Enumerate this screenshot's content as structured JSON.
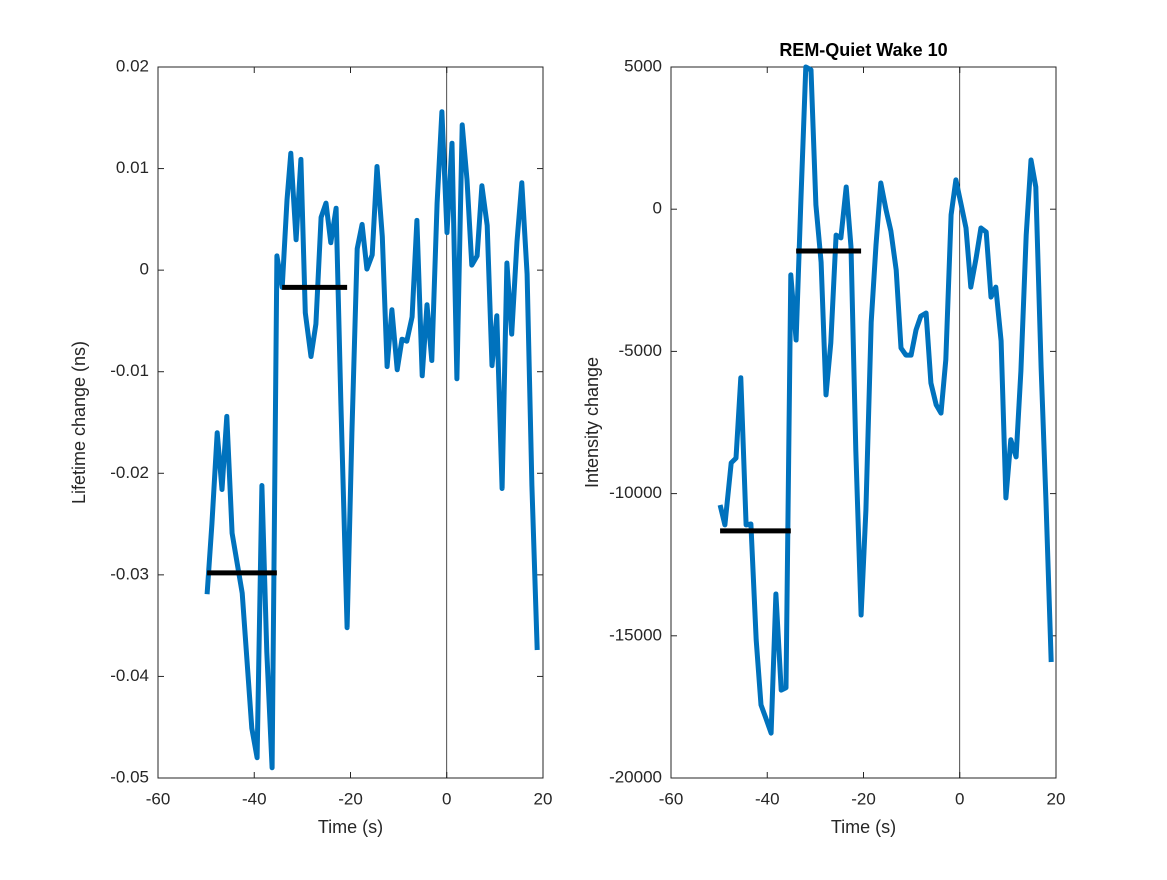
{
  "chart_data": [
    {
      "type": "line",
      "xlabel": "Time (s)",
      "ylabel": "Lifetime change (ns)",
      "color": "#0072bd",
      "xlim": [
        -60,
        20
      ],
      "xticks": [
        -60,
        -40,
        -20,
        0,
        20
      ],
      "ylim": [
        -0.05,
        0.02
      ],
      "yticks": [
        -0.05,
        -0.04,
        -0.03,
        -0.02,
        -0.01,
        0,
        0.01,
        0.02
      ],
      "vline": 0,
      "x": [
        -49.8,
        -48.8,
        -47.7,
        -46.7,
        -45.7,
        -44.6,
        -42.5,
        -40.5,
        -39.4,
        -38.4,
        -37.4,
        -36.3,
        -35.3,
        -34.2,
        -33.2,
        -32.4,
        -31.3,
        -30.3,
        -29.4,
        -28.2,
        -27.2,
        -26.1,
        -25.1,
        -24.1,
        -23.0,
        -22.0,
        -20.7,
        -19.7,
        -18.6,
        -17.6,
        -16.6,
        -15.5,
        -14.5,
        -13.4,
        -12.4,
        -11.4,
        -10.3,
        -9.3,
        -8.3,
        -7.2,
        -6.2,
        -5.1,
        -4.1,
        -3.1,
        -2.0,
        -1.0,
        0.05,
        1.1,
        2.1,
        3.2,
        4.2,
        5.2,
        6.3,
        7.3,
        8.4,
        9.4,
        10.4,
        11.5,
        12.5,
        13.5,
        14.6,
        15.6,
        16.7,
        17.7,
        18.8
      ],
      "values": [
        -0.0319,
        -0.025,
        -0.016,
        -0.0216,
        -0.0144,
        -0.0259,
        -0.0318,
        -0.0451,
        -0.048,
        -0.0212,
        -0.0376,
        -0.049,
        0.0014,
        -0.0017,
        0.0069,
        0.0115,
        0.003,
        0.0109,
        -0.0042,
        -0.0085,
        -0.0053,
        0.0052,
        0.0066,
        0.0027,
        0.0061,
        -0.0132,
        -0.0352,
        -0.016,
        0.0021,
        0.0045,
        0.0001,
        0.0015,
        0.0102,
        0.0033,
        -0.0095,
        -0.0039,
        -0.0098,
        -0.0068,
        -0.007,
        -0.0046,
        0.0049,
        -0.0104,
        -0.0034,
        -0.0089,
        0.0066,
        0.0156,
        0.0037,
        0.0125,
        -0.0107,
        0.0143,
        0.0089,
        0.0005,
        0.0014,
        0.0083,
        0.0044,
        -0.0094,
        -0.0045,
        -0.0215,
        0.0007,
        -0.0063,
        0.0028,
        0.0086,
        -0.0004,
        -0.0212,
        -0.0374
      ],
      "segments": [
        {
          "x": [
            -49.8,
            -35.3
          ],
          "y": -0.0298
        },
        {
          "x": [
            -34.2,
            -20.7
          ],
          "y": -0.0017
        }
      ]
    },
    {
      "type": "line",
      "title": "REM-Quiet Wake 10",
      "xlabel": "Time (s)",
      "ylabel": "Intensity change",
      "color": "#0072bd",
      "xlim": [
        -60,
        20
      ],
      "xticks": [
        -60,
        -40,
        -20,
        0,
        20
      ],
      "ylim": [
        -20000,
        5000
      ],
      "yticks": [
        -20000,
        -15000,
        -10000,
        -5000,
        0,
        5000
      ],
      "vline": 0,
      "x": [
        -49.8,
        -48.8,
        -47.5,
        -46.5,
        -45.5,
        -44.4,
        -43.4,
        -42.3,
        -41.3,
        -40.3,
        -39.2,
        -38.2,
        -37.1,
        -36.1,
        -35.1,
        -34.0,
        -33.0,
        -32.0,
        -30.9,
        -29.9,
        -28.8,
        -27.8,
        -26.8,
        -25.7,
        -24.7,
        -23.6,
        -22.6,
        -21.6,
        -20.5,
        -19.5,
        -18.4,
        -17.4,
        -16.4,
        -15.3,
        -14.3,
        -13.2,
        -12.2,
        -11.2,
        -10.1,
        -9.1,
        -8.1,
        -7.0,
        -6.0,
        -4.9,
        -3.9,
        -2.9,
        -1.8,
        -0.8,
        0.3,
        1.3,
        2.3,
        3.4,
        4.4,
        5.5,
        6.5,
        7.5,
        8.6,
        9.6,
        10.6,
        11.7,
        12.7,
        13.8,
        14.8,
        15.8,
        16.9,
        17.9,
        19.0
      ],
      "values": [
        -10400,
        -11100,
        -8920,
        -8750,
        -5930,
        -11100,
        -11070,
        -15150,
        -17430,
        -17890,
        -18420,
        -13530,
        -16910,
        -16830,
        -2310,
        -4600,
        320,
        5000,
        4900,
        150,
        -1860,
        -6530,
        -4700,
        -910,
        -1010,
        780,
        -1330,
        -8470,
        -14270,
        -10580,
        -3970,
        -1260,
        920,
        -30,
        -770,
        -2140,
        -4880,
        -5130,
        -5130,
        -4250,
        -3760,
        -3650,
        -6110,
        -6880,
        -7170,
        -5300,
        -200,
        1030,
        150,
        -660,
        -2740,
        -1720,
        -660,
        -800,
        -3090,
        -2740,
        -4630,
        -10150,
        -8110,
        -8710,
        -5690,
        -910,
        1730,
        780,
        -5550,
        -10190,
        -15920
      ],
      "segments": [
        {
          "x": [
            -49.8,
            -35.1
          ],
          "y": -11310
        },
        {
          "x": [
            -34.0,
            -20.5
          ],
          "y": -1470
        }
      ]
    }
  ]
}
